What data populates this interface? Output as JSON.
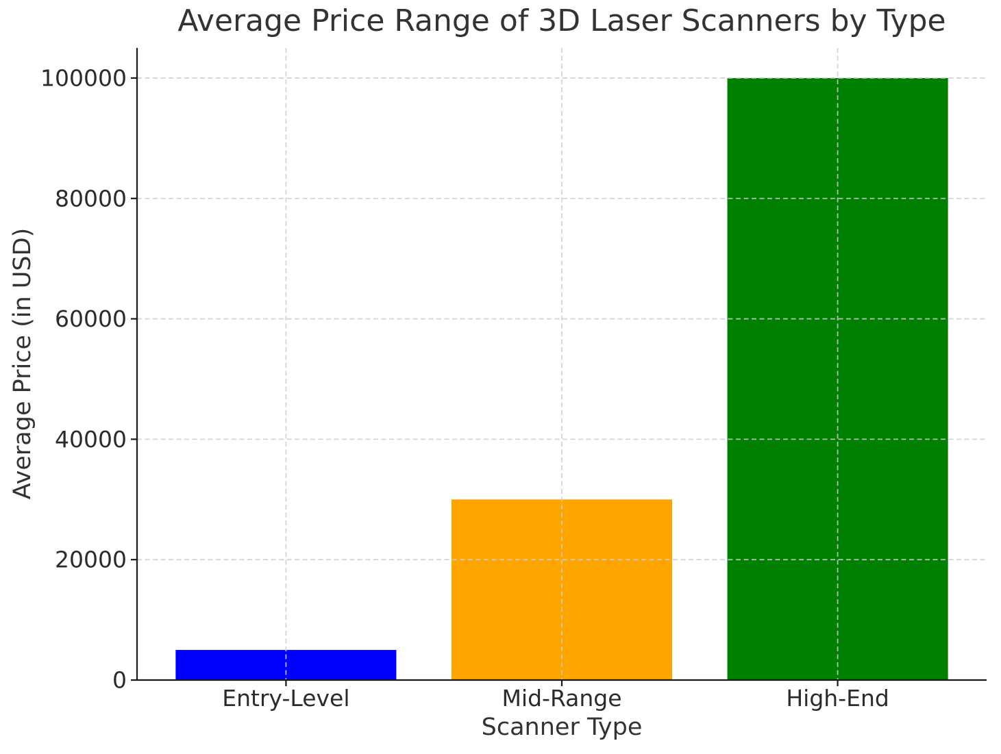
{
  "chart_data": {
    "type": "bar",
    "title": "Average Price Range of 3D Laser Scanners by Type",
    "xlabel": "Scanner Type",
    "ylabel": "Average Price (in USD)",
    "categories": [
      "Entry-Level",
      "Mid-Range",
      "High-End"
    ],
    "values": [
      5000,
      30000,
      100000
    ],
    "bar_colors": [
      "#0000ff",
      "#ffa500",
      "#008000"
    ],
    "ylim": [
      0,
      105000
    ],
    "yticks": [
      0,
      20000,
      40000,
      60000,
      80000,
      100000
    ],
    "grid": true,
    "grid_style": "dashed",
    "grid_color": "#cccccc",
    "spine_color": "#1a1a1a",
    "text_color": "#333333",
    "legend": false
  }
}
